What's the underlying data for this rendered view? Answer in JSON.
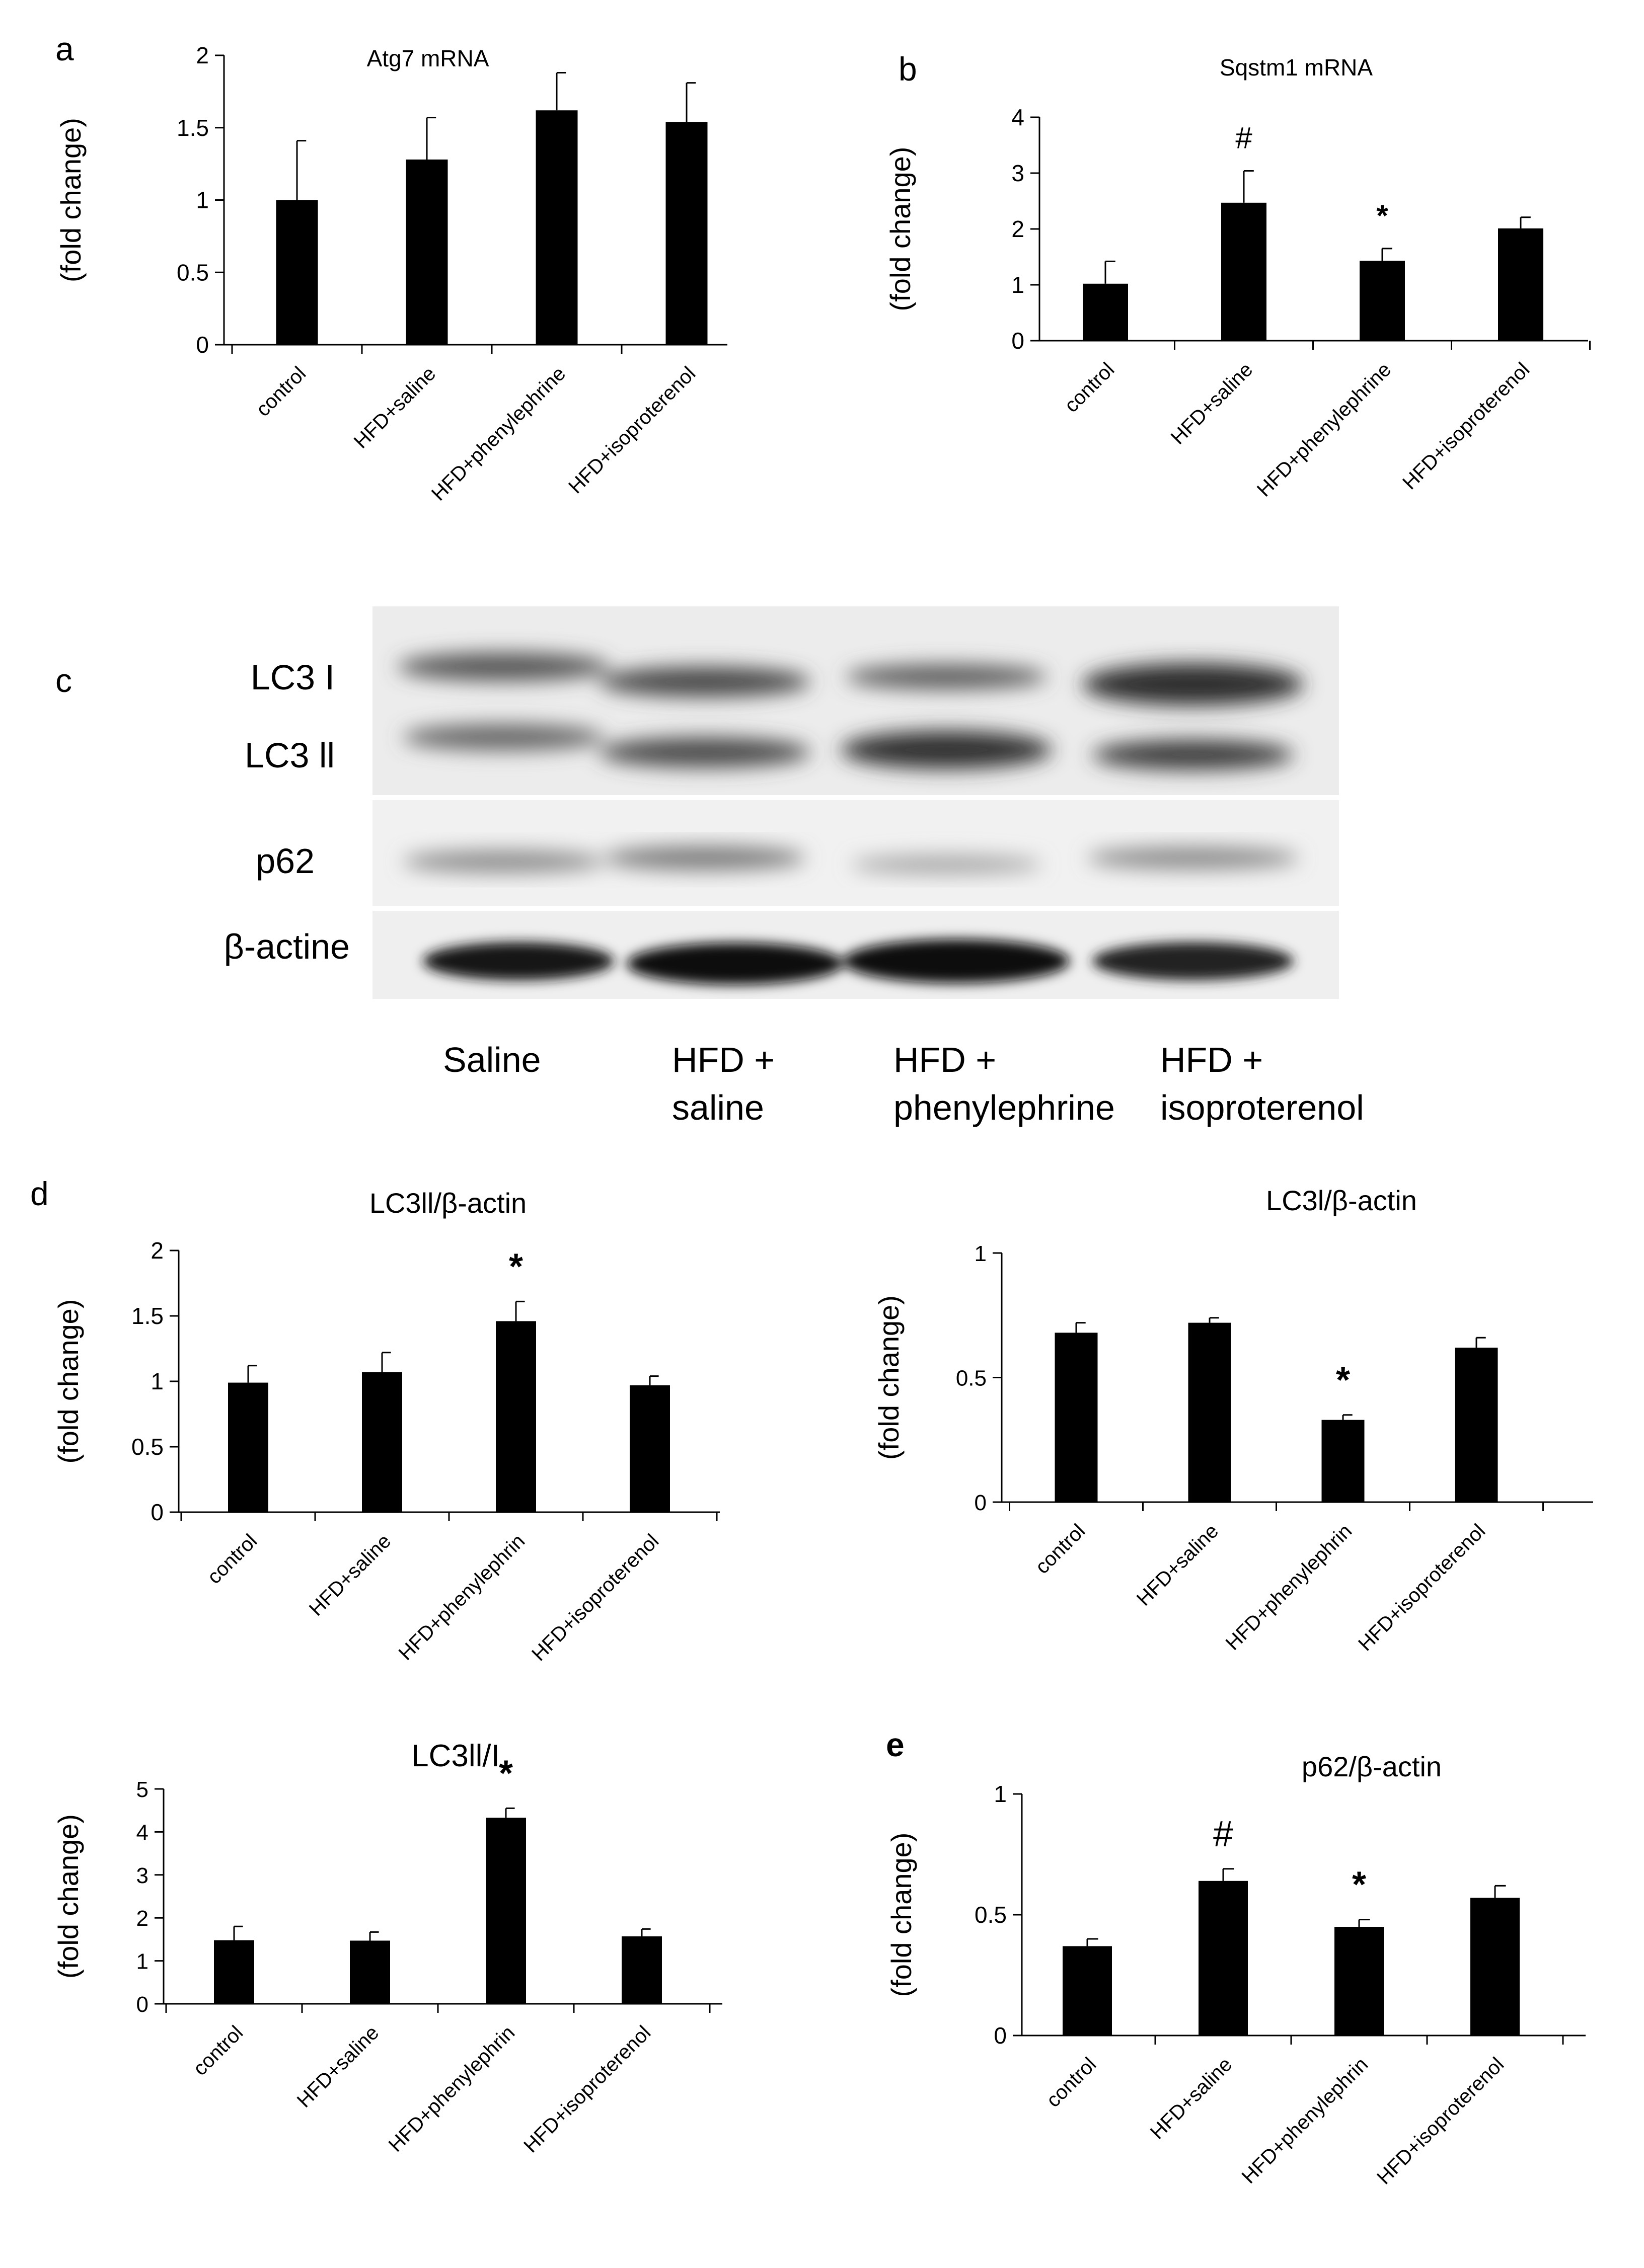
{
  "chart_data": [
    {
      "panel": "a",
      "type": "bar",
      "title": "Atg7 mRNA",
      "ylabel": "(fold change)",
      "categories": [
        "control",
        "HFD+saline",
        "HFD+phenylephrine",
        "HFD+isoproterenol"
      ],
      "values": [
        1.0,
        1.28,
        1.62,
        1.54
      ],
      "errors": [
        0.41,
        0.29,
        0.26,
        0.27
      ],
      "annotations": [
        "",
        "",
        "",
        ""
      ],
      "ylim": [
        0,
        2
      ],
      "yticks": [
        "0",
        "0.5",
        "1",
        "1.5",
        "2"
      ],
      "grid": false,
      "bar_color": "#000000"
    },
    {
      "panel": "b",
      "type": "bar",
      "title": "Sqstm1 mRNA",
      "ylabel": "(fold change)",
      "categories": [
        "control",
        "HFD+saline",
        "HFD+phenylephrine",
        "HFD+isoproterenol"
      ],
      "values": [
        1.02,
        2.47,
        1.43,
        2.01
      ],
      "errors": [
        0.4,
        0.57,
        0.22,
        0.2
      ],
      "annotations": [
        "",
        "#",
        "*",
        ""
      ],
      "ylim": [
        0,
        4
      ],
      "yticks": [
        "0",
        "1",
        "2",
        "3",
        "4"
      ],
      "grid": false,
      "bar_color": "#000000"
    },
    {
      "panel": "d",
      "type": "bar",
      "title": "LC3ll/β-actin",
      "ylabel": "(fold change)",
      "categories": [
        "control",
        "HFD+saline",
        "HFD+phenylephrin",
        "HFD+isoproterenol"
      ],
      "values": [
        0.99,
        1.07,
        1.46,
        0.97
      ],
      "errors": [
        0.13,
        0.15,
        0.15,
        0.07
      ],
      "annotations": [
        "",
        "",
        "*",
        ""
      ],
      "ylim": [
        0,
        2
      ],
      "yticks": [
        "0",
        "0.5",
        "1",
        "1.5",
        "2"
      ],
      "grid": false,
      "bar_color": "#000000"
    },
    {
      "panel": "d",
      "type": "bar",
      "title": "LC3l/β-actin",
      "ylabel": "(fold change)",
      "categories": [
        "control",
        "HFD+saline",
        "HFD+phenylephrin",
        "HFD+isoproterenol"
      ],
      "values": [
        0.68,
        0.72,
        0.33,
        0.62
      ],
      "errors": [
        0.04,
        0.02,
        0.02,
        0.04
      ],
      "annotations": [
        "",
        "",
        "*",
        ""
      ],
      "ylim": [
        0,
        1
      ],
      "yticks": [
        "0",
        "0.5",
        "1"
      ],
      "grid": false,
      "bar_color": "#000000"
    },
    {
      "panel": "d",
      "type": "bar",
      "title": "LC3ll/I",
      "ylabel": "(fold change)",
      "categories": [
        "control",
        "HFD+saline",
        "HFD+phenylephrin",
        "HFD+isoproterenol"
      ],
      "values": [
        1.48,
        1.47,
        4.33,
        1.57
      ],
      "errors": [
        0.32,
        0.2,
        0.22,
        0.17
      ],
      "annotations": [
        "",
        "",
        "*",
        ""
      ],
      "ylim": [
        0,
        5
      ],
      "yticks": [
        "0",
        "1",
        "2",
        "3",
        "4",
        "5"
      ],
      "grid": false,
      "bar_color": "#000000"
    },
    {
      "panel": "e",
      "type": "bar",
      "title": "p62/β-actin",
      "ylabel": "(fold change)",
      "categories": [
        "control",
        "HFD+saline",
        "HFD+phenylephrin",
        "HFD+isoproterenol"
      ],
      "values": [
        0.37,
        0.64,
        0.45,
        0.57
      ],
      "errors": [
        0.03,
        0.05,
        0.03,
        0.05
      ],
      "annotations": [
        "",
        "#",
        "*",
        ""
      ],
      "ylim": [
        0,
        1
      ],
      "yticks": [
        "0",
        "0.5",
        "1"
      ],
      "grid": false,
      "bar_color": "#000000"
    }
  ],
  "panel_letters": {
    "a": "a",
    "b": "b",
    "c": "c",
    "d": "d",
    "e": "e"
  },
  "blot": {
    "band_labels": [
      "LC3 I",
      "LC3 ll",
      "p62",
      "β-actine"
    ],
    "lane_labels": [
      [
        "Saline",
        ""
      ],
      [
        "HFD +",
        "saline"
      ],
      [
        "HFD +",
        "phenylephrine"
      ],
      [
        "HFD +",
        "isoproterenol"
      ]
    ]
  }
}
